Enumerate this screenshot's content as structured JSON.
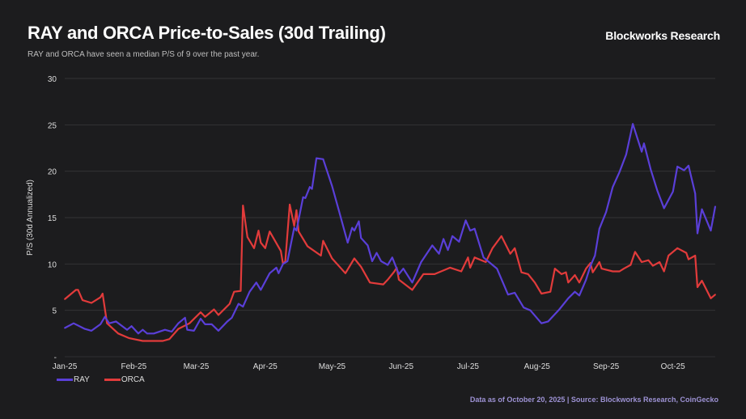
{
  "header": {
    "title": "RAY and ORCA Price-to-Sales (30d Trailing)",
    "subtitle": "RAY and ORCA have seen a median P/S of 9 over the past year.",
    "brand": "Blockworks Research"
  },
  "footnote": "Data as of October 20, 2025 | Source: Blockworks Research, CoinGecko",
  "chart_data": {
    "type": "line",
    "title": "RAY and ORCA Price-to-Sales (30d Trailing)",
    "xlabel": "",
    "ylabel": "P/S  (30d Annualized)",
    "ylim": [
      0,
      30
    ],
    "xlim": [
      "2025-01-01",
      "2025-10-20"
    ],
    "grid": true,
    "legend": "bottom-left",
    "y_ticks": [
      {
        "value": 30,
        "label": "30"
      },
      {
        "value": 25,
        "label": "25"
      },
      {
        "value": 20,
        "label": "20"
      },
      {
        "value": 15,
        "label": "15"
      },
      {
        "value": 10,
        "label": "10"
      },
      {
        "value": 5,
        "label": "5"
      },
      {
        "value": 0,
        "label": "-"
      }
    ],
    "x_ticks": [
      {
        "date": "2025-01-01",
        "label": "Jan-25"
      },
      {
        "date": "2025-02-01",
        "label": "Feb-25"
      },
      {
        "date": "2025-03-01",
        "label": "Mar-25"
      },
      {
        "date": "2025-04-01",
        "label": "Apr-25"
      },
      {
        "date": "2025-05-01",
        "label": "May-25"
      },
      {
        "date": "2025-06-01",
        "label": "Jun-25"
      },
      {
        "date": "2025-07-01",
        "label": "Jul-25"
      },
      {
        "date": "2025-08-01",
        "label": "Aug-25"
      },
      {
        "date": "2025-09-01",
        "label": "Sep-25"
      },
      {
        "date": "2025-10-01",
        "label": "Oct-25"
      }
    ],
    "series": [
      {
        "name": "RAY",
        "color": "#5a3fd8",
        "points": [
          [
            "2025-01-01",
            3.1
          ],
          [
            "2025-01-05",
            3.6
          ],
          [
            "2025-01-10",
            3.0
          ],
          [
            "2025-01-13",
            2.8
          ],
          [
            "2025-01-17",
            3.5
          ],
          [
            "2025-01-19",
            4.3
          ],
          [
            "2025-01-21",
            3.6
          ],
          [
            "2025-01-24",
            3.8
          ],
          [
            "2025-01-29",
            2.9
          ],
          [
            "2025-01-31",
            3.3
          ],
          [
            "2025-02-03",
            2.5
          ],
          [
            "2025-02-05",
            2.9
          ],
          [
            "2025-02-07",
            2.5
          ],
          [
            "2025-02-10",
            2.5
          ],
          [
            "2025-02-15",
            2.9
          ],
          [
            "2025-02-18",
            2.7
          ],
          [
            "2025-02-21",
            3.6
          ],
          [
            "2025-02-24",
            4.2
          ],
          [
            "2025-02-25",
            2.9
          ],
          [
            "2025-02-28",
            2.8
          ],
          [
            "2025-03-03",
            4.1
          ],
          [
            "2025-03-05",
            3.5
          ],
          [
            "2025-03-08",
            3.5
          ],
          [
            "2025-03-11",
            2.8
          ],
          [
            "2025-03-15",
            3.8
          ],
          [
            "2025-03-17",
            4.2
          ],
          [
            "2025-03-20",
            5.7
          ],
          [
            "2025-03-22",
            5.4
          ],
          [
            "2025-03-25",
            7.0
          ],
          [
            "2025-03-28",
            8.0
          ],
          [
            "2025-03-30",
            7.2
          ],
          [
            "2025-04-03",
            9.0
          ],
          [
            "2025-04-06",
            9.6
          ],
          [
            "2025-04-07",
            9.0
          ],
          [
            "2025-04-09",
            10.0
          ],
          [
            "2025-04-11",
            10.3
          ],
          [
            "2025-04-14",
            13.9
          ],
          [
            "2025-04-15",
            13.6
          ],
          [
            "2025-04-18",
            17.2
          ],
          [
            "2025-04-19",
            17.1
          ],
          [
            "2025-04-21",
            18.3
          ],
          [
            "2025-04-22",
            18.1
          ],
          [
            "2025-04-24",
            21.4
          ],
          [
            "2025-04-27",
            21.3
          ],
          [
            "2025-05-01",
            18.4
          ],
          [
            "2025-05-04",
            15.8
          ],
          [
            "2025-05-08",
            12.3
          ],
          [
            "2025-05-10",
            13.9
          ],
          [
            "2025-05-11",
            13.6
          ],
          [
            "2025-05-13",
            14.6
          ],
          [
            "2025-05-14",
            12.8
          ],
          [
            "2025-05-17",
            12.0
          ],
          [
            "2025-05-19",
            10.3
          ],
          [
            "2025-05-21",
            11.2
          ],
          [
            "2025-05-23",
            10.3
          ],
          [
            "2025-05-26",
            9.9
          ],
          [
            "2025-05-28",
            10.7
          ],
          [
            "2025-05-31",
            8.9
          ],
          [
            "2025-06-02",
            9.5
          ],
          [
            "2025-06-06",
            8.0
          ],
          [
            "2025-06-10",
            10.2
          ],
          [
            "2025-06-15",
            12.0
          ],
          [
            "2025-06-18",
            11.1
          ],
          [
            "2025-06-20",
            12.7
          ],
          [
            "2025-06-22",
            11.5
          ],
          [
            "2025-06-24",
            13.0
          ],
          [
            "2025-06-27",
            12.4
          ],
          [
            "2025-06-30",
            14.7
          ],
          [
            "2025-07-02",
            13.6
          ],
          [
            "2025-07-04",
            13.8
          ],
          [
            "2025-07-08",
            10.7
          ],
          [
            "2025-07-14",
            9.5
          ],
          [
            "2025-07-19",
            6.7
          ],
          [
            "2025-07-22",
            6.9
          ],
          [
            "2025-07-26",
            5.3
          ],
          [
            "2025-07-29",
            5.0
          ],
          [
            "2025-08-03",
            3.6
          ],
          [
            "2025-08-06",
            3.8
          ],
          [
            "2025-08-11",
            5.1
          ],
          [
            "2025-08-15",
            6.3
          ],
          [
            "2025-08-18",
            7.0
          ],
          [
            "2025-08-20",
            6.6
          ],
          [
            "2025-08-23",
            8.3
          ],
          [
            "2025-08-25",
            9.8
          ],
          [
            "2025-08-27",
            10.9
          ],
          [
            "2025-08-29",
            13.8
          ],
          [
            "2025-09-01",
            15.6
          ],
          [
            "2025-09-04",
            18.3
          ],
          [
            "2025-09-07",
            19.9
          ],
          [
            "2025-09-10",
            21.8
          ],
          [
            "2025-09-13",
            25.1
          ],
          [
            "2025-09-17",
            22.1
          ],
          [
            "2025-09-18",
            23.0
          ],
          [
            "2025-09-21",
            20.2
          ],
          [
            "2025-09-24",
            17.9
          ],
          [
            "2025-09-27",
            16.0
          ],
          [
            "2025-10-01",
            17.8
          ],
          [
            "2025-10-03",
            20.5
          ],
          [
            "2025-10-06",
            20.1
          ],
          [
            "2025-10-08",
            20.6
          ],
          [
            "2025-10-09",
            19.6
          ],
          [
            "2025-10-11",
            17.6
          ],
          [
            "2025-10-12",
            13.3
          ],
          [
            "2025-10-14",
            15.9
          ],
          [
            "2025-10-18",
            13.6
          ],
          [
            "2025-10-20",
            16.2
          ]
        ]
      },
      {
        "name": "ORCA",
        "color": "#e23b3b",
        "points": [
          [
            "2025-01-01",
            6.2
          ],
          [
            "2025-01-06",
            7.2
          ],
          [
            "2025-01-07",
            7.2
          ],
          [
            "2025-01-09",
            6.1
          ],
          [
            "2025-01-13",
            5.8
          ],
          [
            "2025-01-17",
            6.4
          ],
          [
            "2025-01-18",
            6.8
          ],
          [
            "2025-01-20",
            3.6
          ],
          [
            "2025-01-25",
            2.5
          ],
          [
            "2025-01-30",
            2.0
          ],
          [
            "2025-02-05",
            1.7
          ],
          [
            "2025-02-14",
            1.7
          ],
          [
            "2025-02-17",
            1.9
          ],
          [
            "2025-02-21",
            3.0
          ],
          [
            "2025-02-26",
            3.6
          ],
          [
            "2025-03-03",
            4.8
          ],
          [
            "2025-03-05",
            4.3
          ],
          [
            "2025-03-09",
            5.1
          ],
          [
            "2025-03-11",
            4.5
          ],
          [
            "2025-03-16",
            5.7
          ],
          [
            "2025-03-18",
            7.0
          ],
          [
            "2025-03-21",
            7.1
          ],
          [
            "2025-03-22",
            16.3
          ],
          [
            "2025-03-24",
            12.9
          ],
          [
            "2025-03-27",
            11.7
          ],
          [
            "2025-03-29",
            13.6
          ],
          [
            "2025-03-30",
            12.3
          ],
          [
            "2025-04-01",
            11.7
          ],
          [
            "2025-04-03",
            13.5
          ],
          [
            "2025-04-08",
            11.4
          ],
          [
            "2025-04-09",
            10.0
          ],
          [
            "2025-04-10",
            10.3
          ],
          [
            "2025-04-12",
            16.4
          ],
          [
            "2025-04-14",
            14.1
          ],
          [
            "2025-04-15",
            15.8
          ],
          [
            "2025-04-16",
            13.5
          ],
          [
            "2025-04-20",
            11.9
          ],
          [
            "2025-04-26",
            10.9
          ],
          [
            "2025-04-27",
            12.5
          ],
          [
            "2025-05-01",
            10.6
          ],
          [
            "2025-05-07",
            9.0
          ],
          [
            "2025-05-11",
            10.6
          ],
          [
            "2025-05-14",
            9.7
          ],
          [
            "2025-05-18",
            8.0
          ],
          [
            "2025-05-24",
            7.8
          ],
          [
            "2025-05-26",
            8.3
          ],
          [
            "2025-05-29",
            9.2
          ],
          [
            "2025-05-30",
            9.6
          ],
          [
            "2025-05-31",
            8.3
          ],
          [
            "2025-06-06",
            7.2
          ],
          [
            "2025-06-11",
            8.9
          ],
          [
            "2025-06-16",
            8.9
          ],
          [
            "2025-06-23",
            9.6
          ],
          [
            "2025-06-28",
            9.2
          ],
          [
            "2025-07-01",
            10.7
          ],
          [
            "2025-07-02",
            9.6
          ],
          [
            "2025-07-04",
            10.7
          ],
          [
            "2025-07-09",
            10.2
          ],
          [
            "2025-07-12",
            11.7
          ],
          [
            "2025-07-16",
            13.0
          ],
          [
            "2025-07-20",
            11.1
          ],
          [
            "2025-07-22",
            11.7
          ],
          [
            "2025-07-25",
            9.1
          ],
          [
            "2025-07-28",
            8.9
          ],
          [
            "2025-07-31",
            8.0
          ],
          [
            "2025-08-03",
            6.8
          ],
          [
            "2025-08-07",
            7.0
          ],
          [
            "2025-08-09",
            9.5
          ],
          [
            "2025-08-12",
            8.9
          ],
          [
            "2025-08-14",
            9.1
          ],
          [
            "2025-08-15",
            8.0
          ],
          [
            "2025-08-18",
            8.8
          ],
          [
            "2025-08-20",
            8.0
          ],
          [
            "2025-08-23",
            9.5
          ],
          [
            "2025-08-25",
            10.1
          ],
          [
            "2025-08-26",
            9.1
          ],
          [
            "2025-08-29",
            10.2
          ],
          [
            "2025-08-30",
            9.5
          ],
          [
            "2025-09-04",
            9.2
          ],
          [
            "2025-09-07",
            9.2
          ],
          [
            "2025-09-09",
            9.5
          ],
          [
            "2025-09-12",
            9.9
          ],
          [
            "2025-09-14",
            11.3
          ],
          [
            "2025-09-17",
            10.2
          ],
          [
            "2025-09-20",
            10.4
          ],
          [
            "2025-09-22",
            9.8
          ],
          [
            "2025-09-25",
            10.2
          ],
          [
            "2025-09-27",
            9.2
          ],
          [
            "2025-09-29",
            10.9
          ],
          [
            "2025-10-03",
            11.7
          ],
          [
            "2025-10-07",
            11.2
          ],
          [
            "2025-10-08",
            10.5
          ],
          [
            "2025-10-11",
            10.9
          ],
          [
            "2025-10-12",
            7.5
          ],
          [
            "2025-10-14",
            8.2
          ],
          [
            "2025-10-18",
            6.3
          ],
          [
            "2025-10-20",
            6.7
          ]
        ]
      }
    ]
  }
}
